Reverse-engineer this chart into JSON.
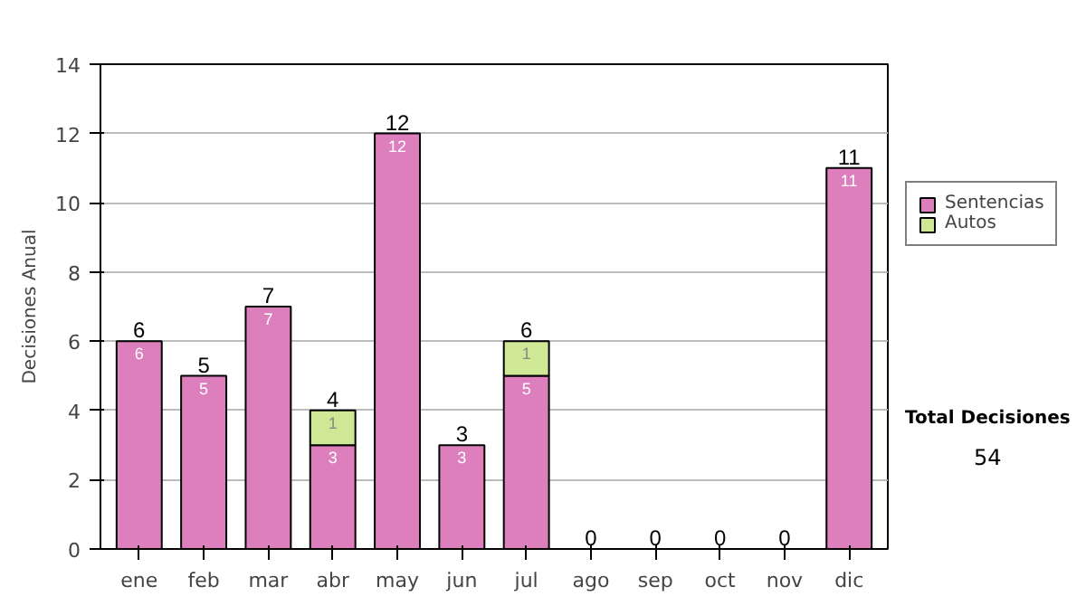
{
  "chart_data": {
    "type": "bar",
    "stacked": true,
    "ylabel": "Decisiones Anual",
    "categories": [
      "ene",
      "feb",
      "mar",
      "abr",
      "may",
      "jun",
      "jul",
      "ago",
      "sep",
      "oct",
      "nov",
      "dic"
    ],
    "series": [
      {
        "name": "Sentencias",
        "color": "#dd7fbd",
        "values": [
          6,
          5,
          7,
          3,
          12,
          3,
          5,
          0,
          0,
          0,
          0,
          11
        ],
        "value_labels": [
          "6",
          "5",
          "7",
          "3",
          "12",
          "3",
          "5",
          null,
          null,
          null,
          null,
          "11"
        ]
      },
      {
        "name": "Autos",
        "color": "#cfe895",
        "values": [
          0,
          0,
          0,
          1,
          0,
          0,
          1,
          0,
          0,
          0,
          0,
          0
        ],
        "value_labels": [
          null,
          null,
          null,
          "1",
          null,
          null,
          "1",
          null,
          null,
          null,
          null,
          null
        ]
      }
    ],
    "totals": [
      "6",
      "5",
      "7",
      "4",
      "12",
      "3",
      "6",
      "0",
      "0",
      "0",
      "0",
      "11"
    ],
    "ylim": [
      0,
      14
    ],
    "yticks": [
      0,
      2,
      4,
      6,
      8,
      10,
      12,
      14
    ],
    "grid": "y",
    "legend": "right",
    "annotations": [
      "Total Decisiones",
      "54"
    ]
  }
}
